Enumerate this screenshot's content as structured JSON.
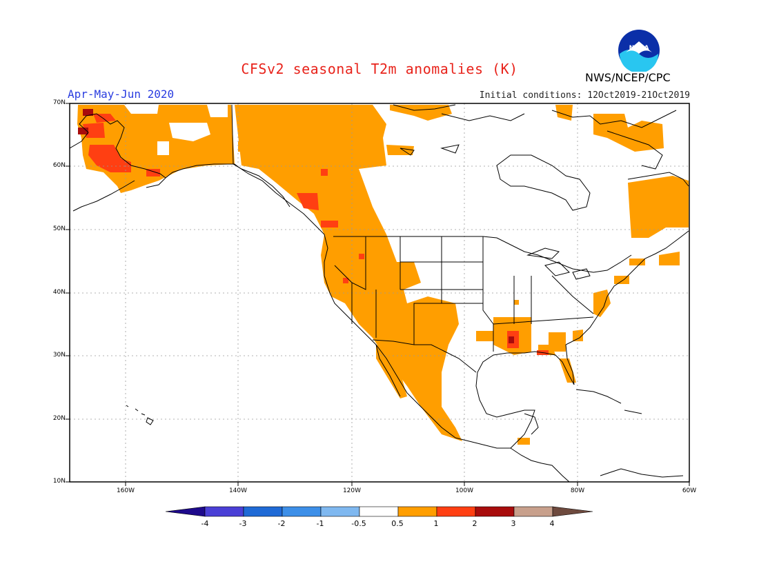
{
  "header": {
    "title": "CFSv2 seasonal T2m anomalies (K)",
    "season": "Apr-May-Jun 2020",
    "initial_conditions": "Initial conditions: 12Oct2019-21Oct2019",
    "agency": "NWS/NCEP/CPC",
    "logo_text": "NOAA"
  },
  "map": {
    "lat_labels": [
      "70N",
      "60N",
      "50N",
      "40N",
      "30N",
      "20N",
      "10N"
    ],
    "lon_labels": [
      "160W",
      "140W",
      "120W",
      "100W",
      "80W",
      "60W"
    ],
    "lat_range": [
      10,
      70
    ],
    "lon_range": [
      -170,
      -60
    ],
    "gridlines": "dotted"
  },
  "colorbar": {
    "labels": [
      "-4",
      "-3",
      "-2",
      "-1",
      "-0.5",
      "0.5",
      "1",
      "2",
      "3",
      "4"
    ],
    "colors": [
      "#1e0a8c",
      "#4a3fd6",
      "#1f6ad6",
      "#3d8fe8",
      "#7fb8f0",
      "#ffffff",
      "#ff9e00",
      "#ff3f12",
      "#a80c0c",
      "#c8a08c",
      "#6e4a3e"
    ]
  }
}
